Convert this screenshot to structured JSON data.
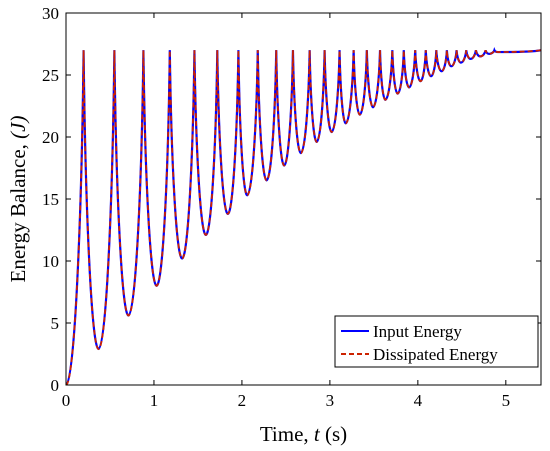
{
  "chart_data": {
    "type": "line",
    "xlabel": {
      "main": "Time, ",
      "var": "t",
      "unit": " (s)"
    },
    "ylabel": {
      "main": "Energy Balance, ",
      "var": "(J)"
    },
    "xlim": [
      0,
      5.4
    ],
    "ylim": [
      0,
      30
    ],
    "xticks": [
      "0",
      "1",
      "2",
      "3",
      "4",
      "5"
    ],
    "yticks": [
      "0",
      "5",
      "10",
      "15",
      "20",
      "25",
      "30"
    ],
    "grid": false,
    "legend_position": "bottom-right",
    "series": [
      {
        "name": "Input Energy",
        "color": "#0000ff",
        "style": "solid"
      },
      {
        "name": "Dissipated Energy",
        "color": "#cc2200",
        "style": "dashed"
      }
    ],
    "envelope_max": 27,
    "troughs": [
      {
        "x": 0.37,
        "y": 2.9
      },
      {
        "x": 0.71,
        "y": 5.6
      },
      {
        "x": 1.03,
        "y": 8.0
      },
      {
        "x": 1.32,
        "y": 10.2
      },
      {
        "x": 1.59,
        "y": 12.1
      },
      {
        "x": 1.84,
        "y": 13.8
      },
      {
        "x": 2.06,
        "y": 15.3
      },
      {
        "x": 2.28,
        "y": 16.5
      },
      {
        "x": 2.48,
        "y": 17.7
      },
      {
        "x": 2.67,
        "y": 18.7
      },
      {
        "x": 2.85,
        "y": 19.6
      },
      {
        "x": 3.02,
        "y": 20.4
      },
      {
        "x": 3.18,
        "y": 21.1
      },
      {
        "x": 3.34,
        "y": 21.8
      },
      {
        "x": 3.49,
        "y": 22.4
      },
      {
        "x": 3.63,
        "y": 23.0
      },
      {
        "x": 3.77,
        "y": 23.5
      },
      {
        "x": 3.9,
        "y": 24.0
      },
      {
        "x": 4.03,
        "y": 24.5
      },
      {
        "x": 4.15,
        "y": 24.9
      },
      {
        "x": 4.27,
        "y": 25.3
      },
      {
        "x": 4.38,
        "y": 25.7
      },
      {
        "x": 4.49,
        "y": 26.0
      },
      {
        "x": 4.6,
        "y": 26.3
      },
      {
        "x": 4.71,
        "y": 26.5
      },
      {
        "x": 4.81,
        "y": 26.7
      },
      {
        "x": 4.91,
        "y": 26.85
      }
    ],
    "peaks_x": [
      0.2,
      0.55,
      0.88,
      1.18,
      1.46,
      1.72,
      1.96,
      2.18,
      2.39,
      2.58,
      2.77,
      2.94,
      3.11,
      3.27,
      3.42,
      3.57,
      3.71,
      3.84,
      3.97,
      4.09,
      4.21,
      4.33,
      4.44,
      4.55,
      4.66,
      4.77,
      4.87
    ],
    "end_x": 5.4
  }
}
